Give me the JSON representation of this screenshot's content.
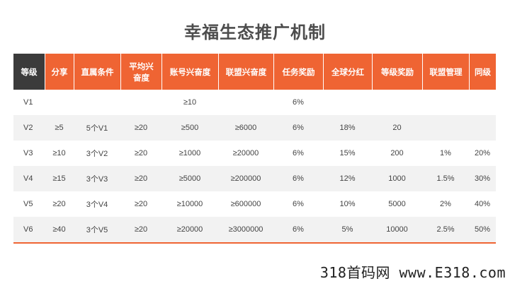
{
  "title": "幸福生态推广机制",
  "table": {
    "headers": [
      "等级",
      "分享",
      "直属条件",
      "平均兴奋度",
      "账号兴奋度",
      "联盟兴奋度",
      "任务奖励",
      "全球分红",
      "等级奖励",
      "联盟管理",
      "同级"
    ],
    "rows": [
      [
        "V1",
        "",
        "",
        "",
        "≥10",
        "",
        "6%",
        "",
        "",
        "",
        ""
      ],
      [
        "V2",
        "≥5",
        "5个V1",
        "≥20",
        "≥500",
        "≥6000",
        "6%",
        "18%",
        "20",
        "",
        ""
      ],
      [
        "V3",
        "≥10",
        "3个V2",
        "≥20",
        "≥1000",
        "≥20000",
        "6%",
        "15%",
        "200",
        "1%",
        "20%"
      ],
      [
        "V4",
        "≥15",
        "3个V3",
        "≥20",
        "≥5000",
        "≥200000",
        "6%",
        "12%",
        "1000",
        "1.5%",
        "30%"
      ],
      [
        "V5",
        "≥20",
        "3个V4",
        "≥20",
        "≥10000",
        "≥600000",
        "6%",
        "10%",
        "5000",
        "2%",
        "40%"
      ],
      [
        "V6",
        "≥40",
        "3个V5",
        "≥20",
        "≥20000",
        "≥3000000",
        "6%",
        "5%",
        "10000",
        "2.5%",
        "50%"
      ]
    ]
  },
  "watermark": "318首码网 www.E318.com",
  "colors": {
    "header_orange": "#ef6433",
    "header_dark": "#3b3b3b",
    "zebra": "#f2f2f2"
  }
}
